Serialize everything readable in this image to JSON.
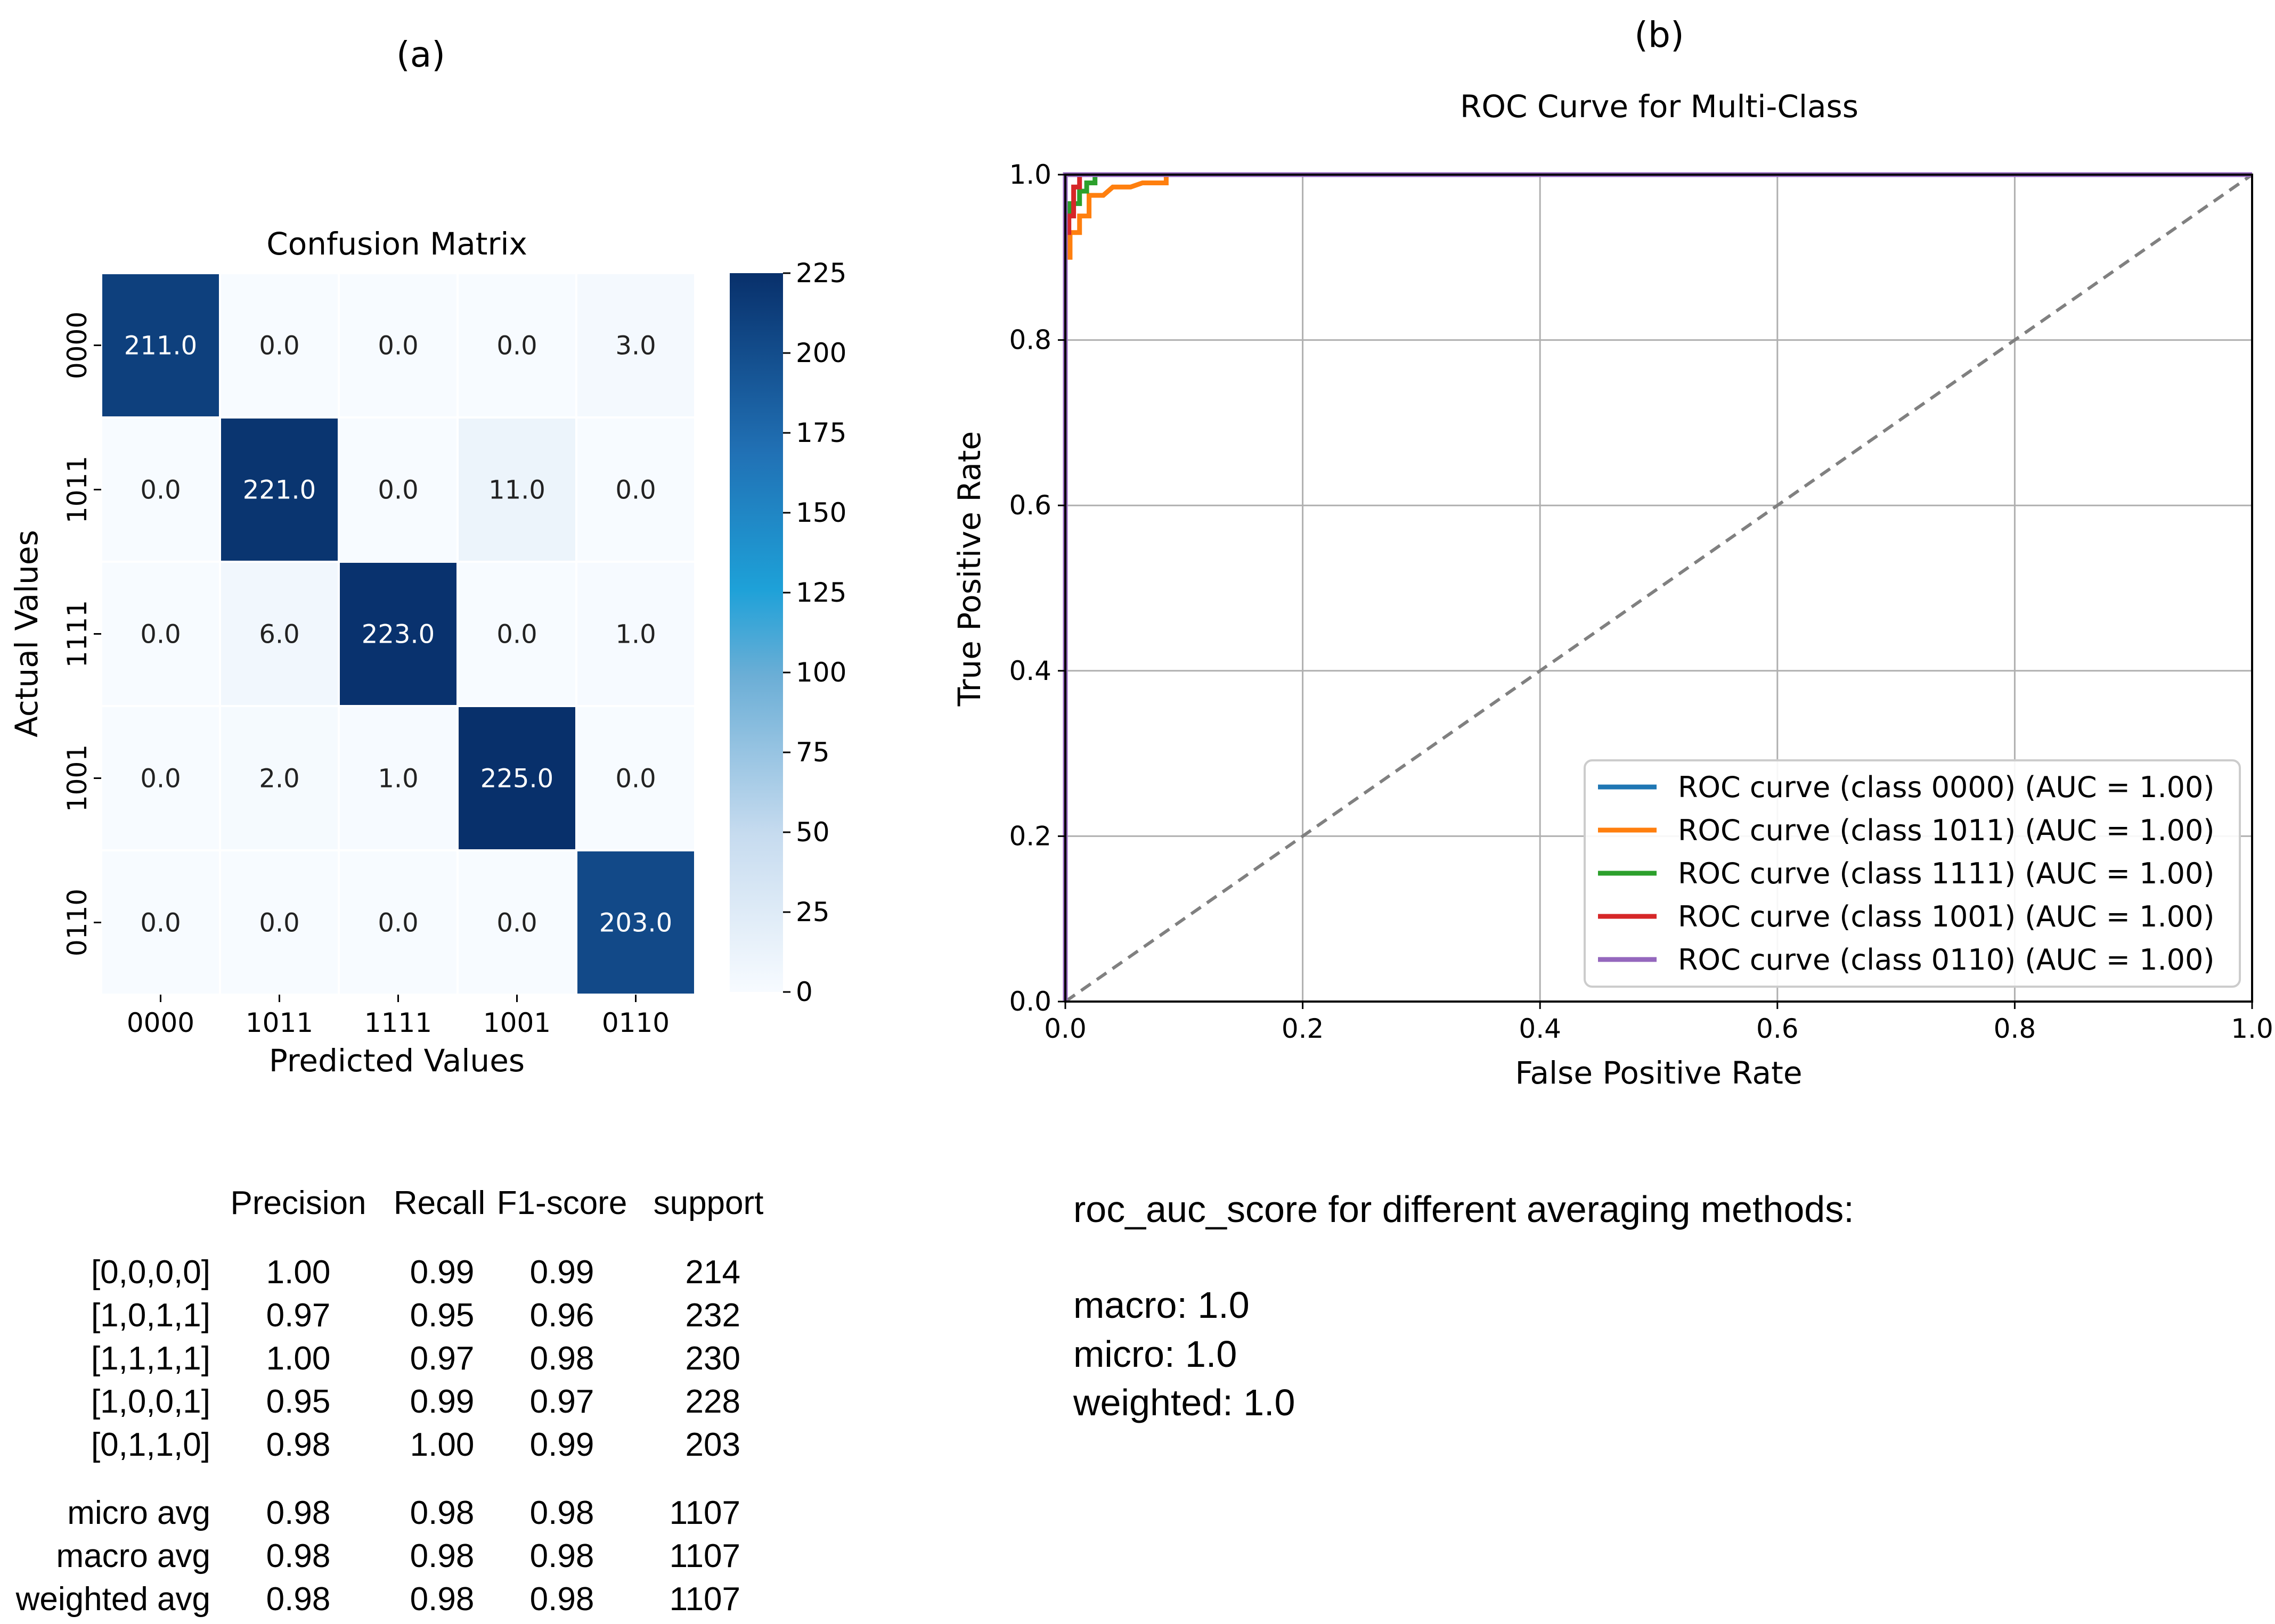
{
  "panels": {
    "a": "(a)",
    "b": "(b)"
  },
  "chart_data": [
    {
      "type": "heatmap",
      "title": "Confusion Matrix",
      "xlabel": "Predicted Values",
      "ylabel": "Actual Values",
      "x_categories": [
        "0000",
        "1011",
        "1111",
        "1001",
        "0110"
      ],
      "y_categories": [
        "0000",
        "1011",
        "1111",
        "1001",
        "0110"
      ],
      "values": [
        [
          211.0,
          0.0,
          0.0,
          0.0,
          3.0
        ],
        [
          0.0,
          221.0,
          0.0,
          11.0,
          0.0
        ],
        [
          0.0,
          6.0,
          223.0,
          0.0,
          1.0
        ],
        [
          0.0,
          2.0,
          1.0,
          225.0,
          0.0
        ],
        [
          0.0,
          0.0,
          0.0,
          0.0,
          203.0
        ]
      ],
      "colorbar": {
        "min": 0,
        "max": 225,
        "ticks": [
          0,
          25,
          50,
          75,
          100,
          125,
          150,
          175,
          200,
          225
        ],
        "colormap": "Blues"
      }
    },
    {
      "type": "line",
      "title": "ROC Curve for Multi-Class",
      "xlabel": "False Positive Rate",
      "ylabel": "True Positive Rate",
      "xlim": [
        0.0,
        1.0
      ],
      "ylim": [
        0.0,
        1.0
      ],
      "xticks": [
        "0.0",
        "0.2",
        "0.4",
        "0.6",
        "0.8",
        "1.0"
      ],
      "yticks": [
        "0.0",
        "0.2",
        "0.4",
        "0.6",
        "0.8",
        "1.0"
      ],
      "grid": true,
      "legend_position": "lower-right",
      "series": [
        {
          "name": "ROC curve (class 0000) (AUC = 1.00)",
          "color": "#1f77b4",
          "x": [
            0.0,
            0.0,
            1.0
          ],
          "y": [
            0.0,
            1.0,
            1.0
          ]
        },
        {
          "name": "ROC curve (class 1011) (AUC = 1.00)",
          "color": "#ff7f0e",
          "x": [
            0.0,
            0.0,
            0.004,
            0.004,
            0.012,
            0.012,
            0.02,
            0.02,
            0.032,
            0.04,
            0.055,
            0.065,
            0.085,
            0.085,
            1.0
          ],
          "y": [
            0.0,
            0.9,
            0.9,
            0.93,
            0.93,
            0.95,
            0.95,
            0.975,
            0.975,
            0.985,
            0.985,
            0.99,
            0.99,
            1.0,
            1.0
          ]
        },
        {
          "name": "ROC curve (class 1111) (AUC = 1.00)",
          "color": "#2ca02c",
          "x": [
            0.0,
            0.0,
            0.004,
            0.004,
            0.012,
            0.012,
            0.018,
            0.018,
            0.025,
            0.025,
            1.0
          ],
          "y": [
            0.0,
            0.95,
            0.95,
            0.965,
            0.965,
            0.98,
            0.98,
            0.99,
            0.99,
            1.0,
            1.0
          ]
        },
        {
          "name": "ROC curve (class 1001) (AUC = 1.00)",
          "color": "#d62728",
          "x": [
            0.0,
            0.0,
            0.003,
            0.003,
            0.007,
            0.007,
            0.012,
            0.012,
            1.0
          ],
          "y": [
            0.0,
            0.93,
            0.93,
            0.95,
            0.95,
            0.985,
            0.985,
            1.0,
            1.0
          ]
        },
        {
          "name": "ROC curve (class 0110) (AUC = 1.00)",
          "color": "#9467bd",
          "x": [
            0.0,
            0.0,
            1.0
          ],
          "y": [
            0.0,
            1.0,
            1.0
          ]
        }
      ],
      "reference_line": {
        "x": [
          0.0,
          1.0
        ],
        "y": [
          0.0,
          1.0
        ],
        "color": "#808080",
        "style": "dashed"
      }
    },
    {
      "type": "table",
      "columns": [
        "Precision",
        "Recall",
        "F1-score",
        "support"
      ],
      "rows": [
        {
          "label": "[0,0,0,0]",
          "values": [
            "1.00",
            "0.99",
            "0.99",
            "214"
          ]
        },
        {
          "label": "[1,0,1,1]",
          "values": [
            "0.97",
            "0.95",
            "0.96",
            "232"
          ]
        },
        {
          "label": "[1,1,1,1]",
          "values": [
            "1.00",
            "0.97",
            "0.98",
            "230"
          ]
        },
        {
          "label": "[1,0,0,1]",
          "values": [
            "0.95",
            "0.99",
            "0.97",
            "228"
          ]
        },
        {
          "label": "[0,1,1,0]",
          "values": [
            "0.98",
            "1.00",
            "0.99",
            "203"
          ]
        }
      ],
      "avg_rows": [
        {
          "label": "micro avg",
          "values": [
            "0.98",
            "0.98",
            "0.98",
            "1107"
          ]
        },
        {
          "label": "macro avg",
          "values": [
            "0.98",
            "0.98",
            "0.98",
            "1107"
          ]
        },
        {
          "label": "weighted avg",
          "values": [
            "0.98",
            "0.98",
            "0.98",
            "1107"
          ]
        }
      ]
    }
  ],
  "roc_scores": {
    "heading": "roc_auc_score for different averaging methods:",
    "lines": [
      "macro: 1.0",
      "micro: 1.0",
      "weighted: 1.0"
    ]
  }
}
